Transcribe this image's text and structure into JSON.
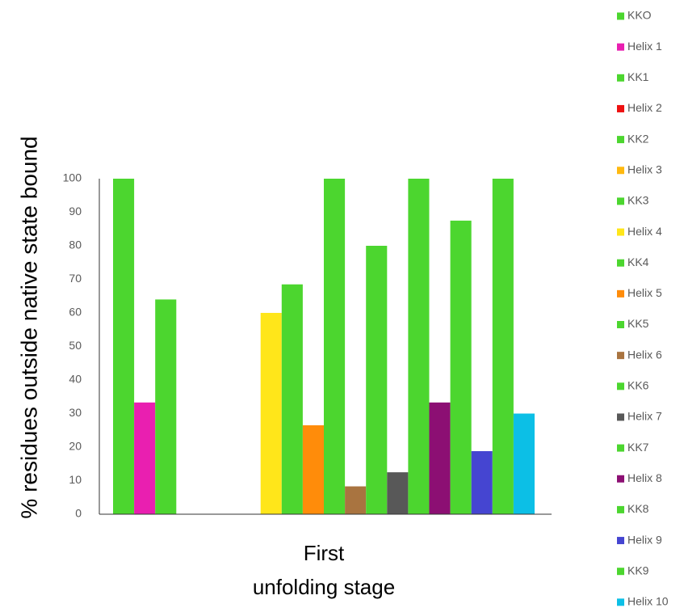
{
  "chart_data": {
    "type": "bar",
    "title": "",
    "ylabel": "% residues outside native state bound",
    "xlabel": "",
    "category_label_lines": [
      "First",
      "unfolding stage"
    ],
    "categories": [
      "First unfolding stage"
    ],
    "ylim": [
      0,
      100
    ],
    "yticks": [
      0,
      10,
      20,
      30,
      40,
      50,
      60,
      70,
      80,
      90,
      100
    ],
    "grid": false,
    "legend_position": "right",
    "series": [
      {
        "name": "KKO",
        "value": 100,
        "color": "#4cd62f"
      },
      {
        "name": "Helix 1",
        "value": 33.3,
        "color": "#e91fb0"
      },
      {
        "name": "KK1",
        "value": 64,
        "color": "#4cd62f"
      },
      {
        "name": "Helix 2",
        "value": 0,
        "color": "#ee1111"
      },
      {
        "name": "KK2",
        "value": 0,
        "color": "#4cd62f"
      },
      {
        "name": "Helix 3",
        "value": 0,
        "color": "#ffb90f"
      },
      {
        "name": "KK3",
        "value": 0,
        "color": "#4cd62f"
      },
      {
        "name": "Helix 4",
        "value": 60,
        "color": "#ffe61a"
      },
      {
        "name": "KK4",
        "value": 68.5,
        "color": "#4cd62f"
      },
      {
        "name": "Helix 5",
        "value": 26.5,
        "color": "#ff8c0a"
      },
      {
        "name": "KK5",
        "value": 100,
        "color": "#4cd62f"
      },
      {
        "name": "Helix 6",
        "value": 8.3,
        "color": "#a97440"
      },
      {
        "name": "KK6",
        "value": 80,
        "color": "#4cd62f"
      },
      {
        "name": "Helix 7",
        "value": 12.5,
        "color": "#585858"
      },
      {
        "name": "KK7",
        "value": 100,
        "color": "#4cd62f"
      },
      {
        "name": "Helix 8",
        "value": 33.3,
        "color": "#8c0f73"
      },
      {
        "name": "KK8",
        "value": 87.5,
        "color": "#4cd62f"
      },
      {
        "name": "Helix 9",
        "value": 18.8,
        "color": "#4545d1"
      },
      {
        "name": "KK9",
        "value": 100,
        "color": "#4cd62f"
      },
      {
        "name": "Helix 10",
        "value": 30,
        "color": "#0cbfe6"
      }
    ]
  }
}
